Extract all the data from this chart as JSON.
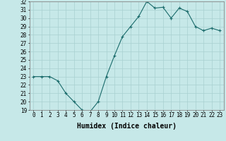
{
  "x": [
    0,
    1,
    2,
    3,
    4,
    5,
    6,
    7,
    8,
    9,
    10,
    11,
    12,
    13,
    14,
    15,
    16,
    17,
    18,
    19,
    20,
    21,
    22,
    23
  ],
  "y": [
    23.0,
    23.0,
    23.0,
    22.5,
    21.0,
    20.0,
    19.0,
    18.8,
    20.0,
    23.0,
    25.5,
    27.8,
    29.0,
    30.2,
    32.0,
    31.2,
    31.3,
    30.0,
    31.2,
    30.8,
    29.0,
    28.5,
    28.8,
    28.5
  ],
  "xlabel": "Humidex (Indice chaleur)",
  "ylim": [
    19,
    32
  ],
  "xlim": [
    -0.5,
    23.5
  ],
  "bg_color": "#c6e8e8",
  "line_color": "#1a6b6b",
  "grid_color": "#a8d0d0",
  "tick_fontsize": 5.5,
  "label_fontsize": 7
}
